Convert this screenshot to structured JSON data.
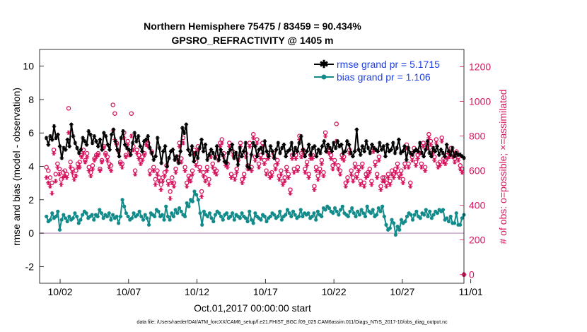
{
  "chart_data": {
    "type": "line",
    "title": [
      "Northern Hemisphere 75475 / 83459 = 90.434%",
      "GPSRO_REFRACTIVITY @ 1405 m"
    ],
    "xlabel": "Oct.01,2017 00:00:00 start",
    "ylabel": "rmse and bias (model - observation)",
    "ylabel_right": "# of obs: o=possible; ×=assimilated",
    "footnote": "data file: /Users/raeder/DAI/ATM_forcXX/CAM6_setup/f.e21.FHIST_BGC.f09_025.CAM6assim.011/Diags_NTrS_2017-10/obs_diag_output.nc",
    "xlim": [
      0.5,
      31.5
    ],
    "ylim": [
      -3,
      11
    ],
    "ylim_right": [
      -50,
      1300
    ],
    "x_ticks": [
      {
        "value": 2,
        "label": "10/02"
      },
      {
        "value": 7,
        "label": "10/07"
      },
      {
        "value": 12,
        "label": "10/12"
      },
      {
        "value": 17,
        "label": "10/17"
      },
      {
        "value": 22,
        "label": "10/22"
      },
      {
        "value": 27,
        "label": "10/27"
      },
      {
        "value": 32,
        "label": "11/01"
      }
    ],
    "y_ticks": [
      -2,
      0,
      2,
      4,
      6,
      8,
      10
    ],
    "y_ticks_right": [
      0,
      200,
      400,
      600,
      800,
      1000,
      1200
    ],
    "colors": {
      "rmse": "#000000",
      "bias": "#138b8b",
      "counts": "#d6155f",
      "legend_text": "#1f3fe0",
      "zero_line": "#c8a8c8"
    },
    "series": [
      {
        "name": "rmse grand pr = 5.1715",
        "key": "rmse",
        "values": [
          5.7,
          5.3,
          5.8,
          5.6,
          6.4,
          5.7,
          5.9,
          5.2,
          4.5,
          5.1,
          5.0,
          5.6,
          5.2,
          6.5,
          5.8,
          5.4,
          5.1,
          4.8,
          5.0,
          5.7,
          5.5,
          5.3,
          6.1,
          5.9,
          5.4,
          5.8,
          5.5,
          5.2,
          5.6,
          5.0,
          6.0,
          5.8,
          5.3,
          5.0,
          5.9,
          6.2,
          5.5,
          5.0,
          4.6,
          5.7,
          6.1,
          5.3,
          5.1,
          5.0,
          4.7,
          5.4,
          6.0,
          5.5,
          5.8,
          5.2,
          4.9,
          5.5,
          5.6,
          5.8,
          5.1,
          4.8,
          4.4,
          4.6,
          5.7,
          5.1,
          4.2,
          4.9,
          5.2,
          4.0,
          4.5,
          4.9,
          5.0,
          4.4,
          4.6,
          4.2,
          4.9,
          6.3,
          6.0,
          6.5,
          5.0,
          4.7,
          5.2,
          4.3,
          4.8,
          4.5,
          5.1,
          5.6,
          4.9,
          5.3,
          4.4,
          4.7,
          5.0,
          4.8,
          4.5,
          5.2,
          4.4,
          5.0,
          4.7,
          4.3,
          4.2,
          4.8,
          5.0,
          5.3,
          4.5,
          4.8,
          4.1,
          5.1,
          4.6,
          4.9,
          5.4,
          4.0,
          3.9,
          4.7,
          5.4,
          5.2,
          4.6,
          5.0,
          5.1,
          4.8,
          5.5,
          4.9,
          4.6,
          5.2,
          4.9,
          4.5,
          5.0,
          5.4,
          4.8,
          5.1,
          5.3,
          4.6,
          4.9,
          5.0,
          5.4,
          4.7,
          5.1,
          4.9,
          5.4,
          5.8,
          5.0,
          4.6,
          4.9,
          5.3,
          4.7,
          5.1,
          5.2,
          4.6,
          5.0,
          4.8,
          5.2,
          5.5,
          4.9,
          5.3,
          5.1,
          4.9,
          5.4,
          5.1,
          5.5,
          5.2,
          5.3,
          4.8,
          4.9,
          5.5,
          5.3,
          4.8,
          4.6,
          4.9,
          6.2,
          5.0,
          4.7,
          5.2,
          4.9,
          5.5,
          5.1,
          4.8,
          5.3,
          5.1,
          5.0,
          4.9,
          5.4,
          5.0,
          5.2,
          4.6,
          5.3,
          4.9,
          5.0,
          5.4,
          4.8,
          5.1,
          5.6,
          4.8,
          4.9,
          5.2,
          4.4,
          5.1,
          4.8,
          4.7,
          4.9,
          5.0,
          4.9,
          5.4,
          4.8,
          4.6,
          5.0,
          5.5,
          4.8,
          4.6,
          5.1,
          4.9,
          5.2,
          4.7,
          5.0,
          4.8,
          4.6,
          5.3,
          4.9,
          4.7,
          5.1,
          4.6,
          4.8,
          4.7,
          4.7,
          4.6,
          4.5
        ]
      },
      {
        "name": "bias grand pr = 1.106",
        "key": "bias",
        "values": [
          1.0,
          0.7,
          0.8,
          1.2,
          0.9,
          1.0,
          1.3,
          0.2,
          0.8,
          1.1,
          0.9,
          0.7,
          1.0,
          0.8,
          0.9,
          1.2,
          1.0,
          0.6,
          0.8,
          1.1,
          1.3,
          1.2,
          0.9,
          1.0,
          1.1,
          0.8,
          1.1,
          1.0,
          1.4,
          1.2,
          0.9,
          1.1,
          1.0,
          1.2,
          0.8,
          1.1,
          0.9,
          1.0,
          0.6,
          1.0,
          2.0,
          1.6,
          1.2,
          1.0,
          0.8,
          0.9,
          1.2,
          1.0,
          1.1,
          1.3,
          1.0,
          0.8,
          1.1,
          0.9,
          0.5,
          1.2,
          1.1,
          1.0,
          1.4,
          1.3,
          1.0,
          1.1,
          0.8,
          1.6,
          1.0,
          0.8,
          1.2,
          1.0,
          1.4,
          1.2,
          1.5,
          1.3,
          1.1,
          1.0,
          1.8,
          1.6,
          2.0,
          1.9,
          2.5,
          2.3,
          2.0,
          1.2,
          0.5,
          1.3,
          1.1,
          1.0,
          1.2,
          0.9,
          0.7,
          1.1,
          1.3,
          1.2,
          1.0,
          0.8,
          1.1,
          1.2,
          0.9,
          1.0,
          1.2,
          0.8,
          1.1,
          1.0,
          0.9,
          1.2,
          1.0,
          0.9,
          0.7,
          1.3,
          0.8,
          0.6,
          1.2,
          1.0,
          0.9,
          0.8,
          1.1,
          1.0,
          0.7,
          0.9,
          1.0,
          1.2,
          1.1,
          0.9,
          1.0,
          1.3,
          0.8,
          1.0,
          1.1,
          1.4,
          1.2,
          1.0,
          1.3,
          1.1,
          0.9,
          1.0,
          1.4,
          1.0,
          1.2,
          1.1,
          1.2,
          0.9,
          1.0,
          1.2,
          0.8,
          1.3,
          1.1,
          1.0,
          1.5,
          1.4,
          1.6,
          1.5,
          1.3,
          1.2,
          1.5,
          1.3,
          1.1,
          1.4,
          1.6,
          1.2,
          1.1,
          1.0,
          1.3,
          1.5,
          1.2,
          1.0,
          1.3,
          1.1,
          1.4,
          1.2,
          1.0,
          1.6,
          1.3,
          1.2,
          1.4,
          1.0,
          1.1,
          1.5,
          1.3,
          1.6,
          1.0,
          0.5,
          0.2,
          0.3,
          0.8,
          0.6,
          -0.1,
          0.4,
          0.2,
          0.8,
          0.6,
          0.7,
          1.0,
          1.2,
          1.1,
          0.8,
          1.1,
          1.3,
          1.0,
          0.9,
          1.2,
          1.1,
          1.4,
          1.0,
          1.3,
          0.9,
          1.1,
          1.3,
          1.2,
          1.4,
          1.3,
          1.4,
          0.8,
          0.9,
          0.7,
          1.0,
          0.6,
          0.6,
          1.2,
          0.5,
          0.5,
          0.9,
          1.1
        ]
      },
      {
        "name": "possible",
        "key": "possible",
        "values": [
          620,
          600,
          560,
          530,
          720,
          580,
          640,
          610,
          550,
          590,
          600,
          580,
          960,
          650,
          610,
          570,
          600,
          640,
          650,
          690,
          720,
          660,
          700,
          620,
          590,
          630,
          670,
          690,
          700,
          610,
          660,
          740,
          700,
          680,
          640,
          630,
          980,
          930,
          760,
          720,
          650,
          640,
          820,
          690,
          770,
          710,
          930,
          740,
          600,
          720,
          690,
          660,
          680,
          700,
          770,
          760,
          600,
          710,
          620,
          550,
          600,
          560,
          520,
          560,
          590,
          630,
          540,
          480,
          560,
          530,
          610,
          680,
          760,
          670,
          790,
          620,
          530,
          570,
          560,
          600,
          720,
          650,
          740,
          620,
          480,
          590,
          560,
          620,
          550,
          700,
          640,
          610,
          600,
          680,
          760,
          780,
          700,
          650,
          640,
          760,
          580,
          710,
          570,
          610,
          680,
          760,
          550,
          580,
          700,
          630,
          760,
          620,
          810,
          680,
          780,
          640,
          690,
          760,
          660,
          600,
          690,
          580,
          590,
          700,
          630,
          660,
          570,
          600,
          540,
          560,
          620,
          580,
          490,
          690,
          610,
          690,
          620,
          800,
          700,
          720,
          610,
          650,
          580,
          690,
          690,
          510,
          620,
          570,
          610,
          660,
          590,
          820,
          730,
          720,
          690,
          630,
          660,
          870,
          630,
          600,
          690,
          680,
          530,
          560,
          720,
          600,
          560,
          640,
          580,
          620,
          540,
          640,
          530,
          580,
          590,
          610,
          540,
          730,
          650,
          580,
          680,
          510,
          560,
          560,
          530,
          580,
          540,
          600,
          580,
          610,
          640,
          580,
          600,
          550,
          640,
          750,
          640,
          530,
          680,
          730,
          650,
          690,
          720,
          640,
          760,
          620,
          750,
          810,
          770,
          720,
          680,
          780,
          640,
          650,
          790,
          670,
          660,
          690,
          700,
          730,
          700,
          670,
          710,
          680,
          630,
          610,
          0
        ]
      },
      {
        "name": "assimilated",
        "key": "assimilated",
        "values": [
          560,
          530,
          510,
          470,
          700,
          540,
          620,
          580,
          520,
          560,
          570,
          560,
          820,
          620,
          590,
          550,
          570,
          620,
          620,
          680,
          700,
          650,
          680,
          600,
          570,
          610,
          660,
          680,
          690,
          600,
          650,
          730,
          690,
          660,
          620,
          600,
          830,
          780,
          750,
          710,
          640,
          620,
          790,
          680,
          750,
          690,
          800,
          720,
          580,
          700,
          670,
          640,
          660,
          690,
          750,
          740,
          580,
          700,
          600,
          520,
          580,
          540,
          490,
          540,
          570,
          600,
          520,
          440,
          530,
          510,
          590,
          660,
          740,
          650,
          760,
          600,
          510,
          550,
          540,
          580,
          700,
          630,
          720,
          600,
          450,
          570,
          540,
          600,
          520,
          680,
          620,
          590,
          580,
          660,
          740,
          760,
          680,
          630,
          620,
          740,
          560,
          690,
          550,
          590,
          660,
          740,
          530,
          560,
          680,
          610,
          740,
          600,
          790,
          660,
          760,
          620,
          670,
          740,
          640,
          580,
          670,
          560,
          570,
          680,
          610,
          640,
          550,
          580,
          520,
          540,
          600,
          560,
          470,
          670,
          590,
          670,
          600,
          780,
          680,
          700,
          590,
          630,
          560,
          670,
          670,
          490,
          600,
          550,
          590,
          640,
          570,
          800,
          710,
          700,
          670,
          610,
          640,
          770,
          610,
          580,
          670,
          660,
          510,
          540,
          700,
          580,
          540,
          620,
          560,
          600,
          520,
          620,
          510,
          560,
          570,
          590,
          520,
          710,
          630,
          560,
          660,
          490,
          540,
          540,
          510,
          560,
          520,
          580,
          560,
          590,
          620,
          560,
          580,
          530,
          620,
          730,
          620,
          510,
          660,
          710,
          630,
          670,
          700,
          620,
          740,
          600,
          730,
          790,
          750,
          700,
          660,
          760,
          620,
          630,
          770,
          650,
          640,
          670,
          680,
          710,
          680,
          650,
          690,
          660,
          610,
          590,
          0
        ]
      }
    ]
  }
}
